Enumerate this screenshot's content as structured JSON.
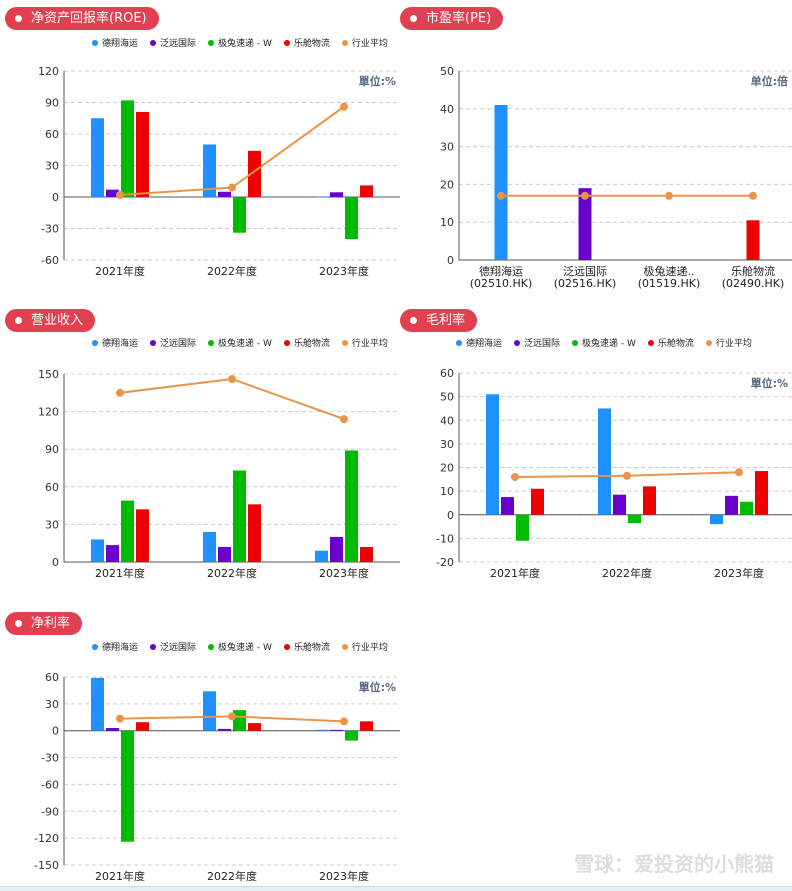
{
  "colors": {
    "series": [
      "#1e90ff",
      "#6a00cc",
      "#00bb00",
      "#ee0000"
    ],
    "average": "#e8954a",
    "pill": "#e0404f"
  },
  "legend": [
    "德翔海运",
    "泛远国际",
    "极兔速递 - W",
    "乐舱物流",
    "行业平均"
  ],
  "watermark": "雪球：爱投资的小熊猫",
  "chart_data": [
    {
      "id": "roe",
      "type": "bar",
      "title": "净资产回报率(ROE)",
      "unit": "單位:%",
      "categories": [
        "2021年度",
        "2022年度",
        "2023年度"
      ],
      "ylim": [
        -60,
        120
      ],
      "yticks": [
        -60,
        -30,
        0,
        30,
        60,
        90,
        120
      ],
      "grid": true,
      "legend": "top",
      "series": [
        {
          "name": "德翔海运",
          "values": [
            75,
            50,
            0.5
          ]
        },
        {
          "name": "泛远国际",
          "values": [
            7,
            5,
            4.5
          ]
        },
        {
          "name": "极兔速递 - W",
          "values": [
            92,
            -34,
            -40
          ]
        },
        {
          "name": "乐舱物流",
          "values": [
            81,
            44,
            11
          ]
        }
      ],
      "average": {
        "name": "行业平均",
        "values": [
          2,
          9,
          86
        ]
      }
    },
    {
      "id": "pe",
      "type": "bar",
      "title": "市盈率(PE)",
      "unit": "单位:倍",
      "categories": [
        "德翔海运\n(02510.HK)",
        "泛远国际\n(02516.HK)",
        "极兔速递..\n(01519.HK)",
        "乐舱物流\n(02490.HK)"
      ],
      "ylim": [
        0,
        50
      ],
      "yticks": [
        0,
        10,
        20,
        30,
        40,
        50
      ],
      "grid": true,
      "values": [
        41,
        19,
        0,
        10.5
      ],
      "average": {
        "name": "行业平均",
        "values": [
          17,
          17,
          17,
          17
        ]
      }
    },
    {
      "id": "revenue",
      "type": "bar",
      "title": "营业收入",
      "unit": "",
      "categories": [
        "2021年度",
        "2022年度",
        "2023年度"
      ],
      "ylim": [
        0,
        150
      ],
      "yticks": [
        0,
        30,
        60,
        90,
        120,
        150
      ],
      "grid": true,
      "legend": "top",
      "series": [
        {
          "name": "德翔海运",
          "values": [
            18,
            24,
            9
          ]
        },
        {
          "name": "泛远国际",
          "values": [
            13.5,
            12,
            20
          ]
        },
        {
          "name": "极兔速递 - W",
          "values": [
            49,
            73,
            89
          ]
        },
        {
          "name": "乐舱物流",
          "values": [
            42,
            46,
            12
          ]
        }
      ],
      "average": {
        "name": "行业平均",
        "values": [
          135,
          146,
          114
        ]
      }
    },
    {
      "id": "gross",
      "type": "bar",
      "title": "毛利率",
      "unit": "單位:%",
      "categories": [
        "2021年度",
        "2022年度",
        "2023年度"
      ],
      "ylim": [
        -20,
        60
      ],
      "yticks": [
        -20,
        -10,
        0,
        10,
        20,
        30,
        40,
        50,
        60
      ],
      "grid": true,
      "legend": "top",
      "series": [
        {
          "name": "德翔海运",
          "values": [
            51,
            45,
            -4
          ]
        },
        {
          "name": "泛远国际",
          "values": [
            7.5,
            8.5,
            8
          ]
        },
        {
          "name": "极兔速递 - W",
          "values": [
            -11,
            -3.5,
            5.5
          ]
        },
        {
          "name": "乐舱物流",
          "values": [
            11,
            12,
            18.5
          ]
        }
      ],
      "average": {
        "name": "行业平均",
        "values": [
          16,
          16.5,
          18
        ]
      }
    },
    {
      "id": "net",
      "type": "bar",
      "title": "净利率",
      "unit": "單位:%",
      "categories": [
        "2021年度",
        "2022年度",
        "2023年度"
      ],
      "ylim": [
        -150,
        60
      ],
      "yticks": [
        -150,
        -120,
        -90,
        -60,
        -30,
        0,
        30,
        60
      ],
      "grid": true,
      "legend": "top",
      "series": [
        {
          "name": "德翔海运",
          "values": [
            59,
            44,
            1
          ]
        },
        {
          "name": "泛远国际",
          "values": [
            3,
            2,
            1
          ]
        },
        {
          "name": "极兔速递 - W",
          "values": [
            -124,
            23,
            -11
          ]
        },
        {
          "name": "乐舱物流",
          "values": [
            9.5,
            8.5,
            10.5
          ]
        }
      ],
      "average": {
        "name": "行业平均",
        "values": [
          13.5,
          16,
          10.5
        ]
      }
    }
  ]
}
